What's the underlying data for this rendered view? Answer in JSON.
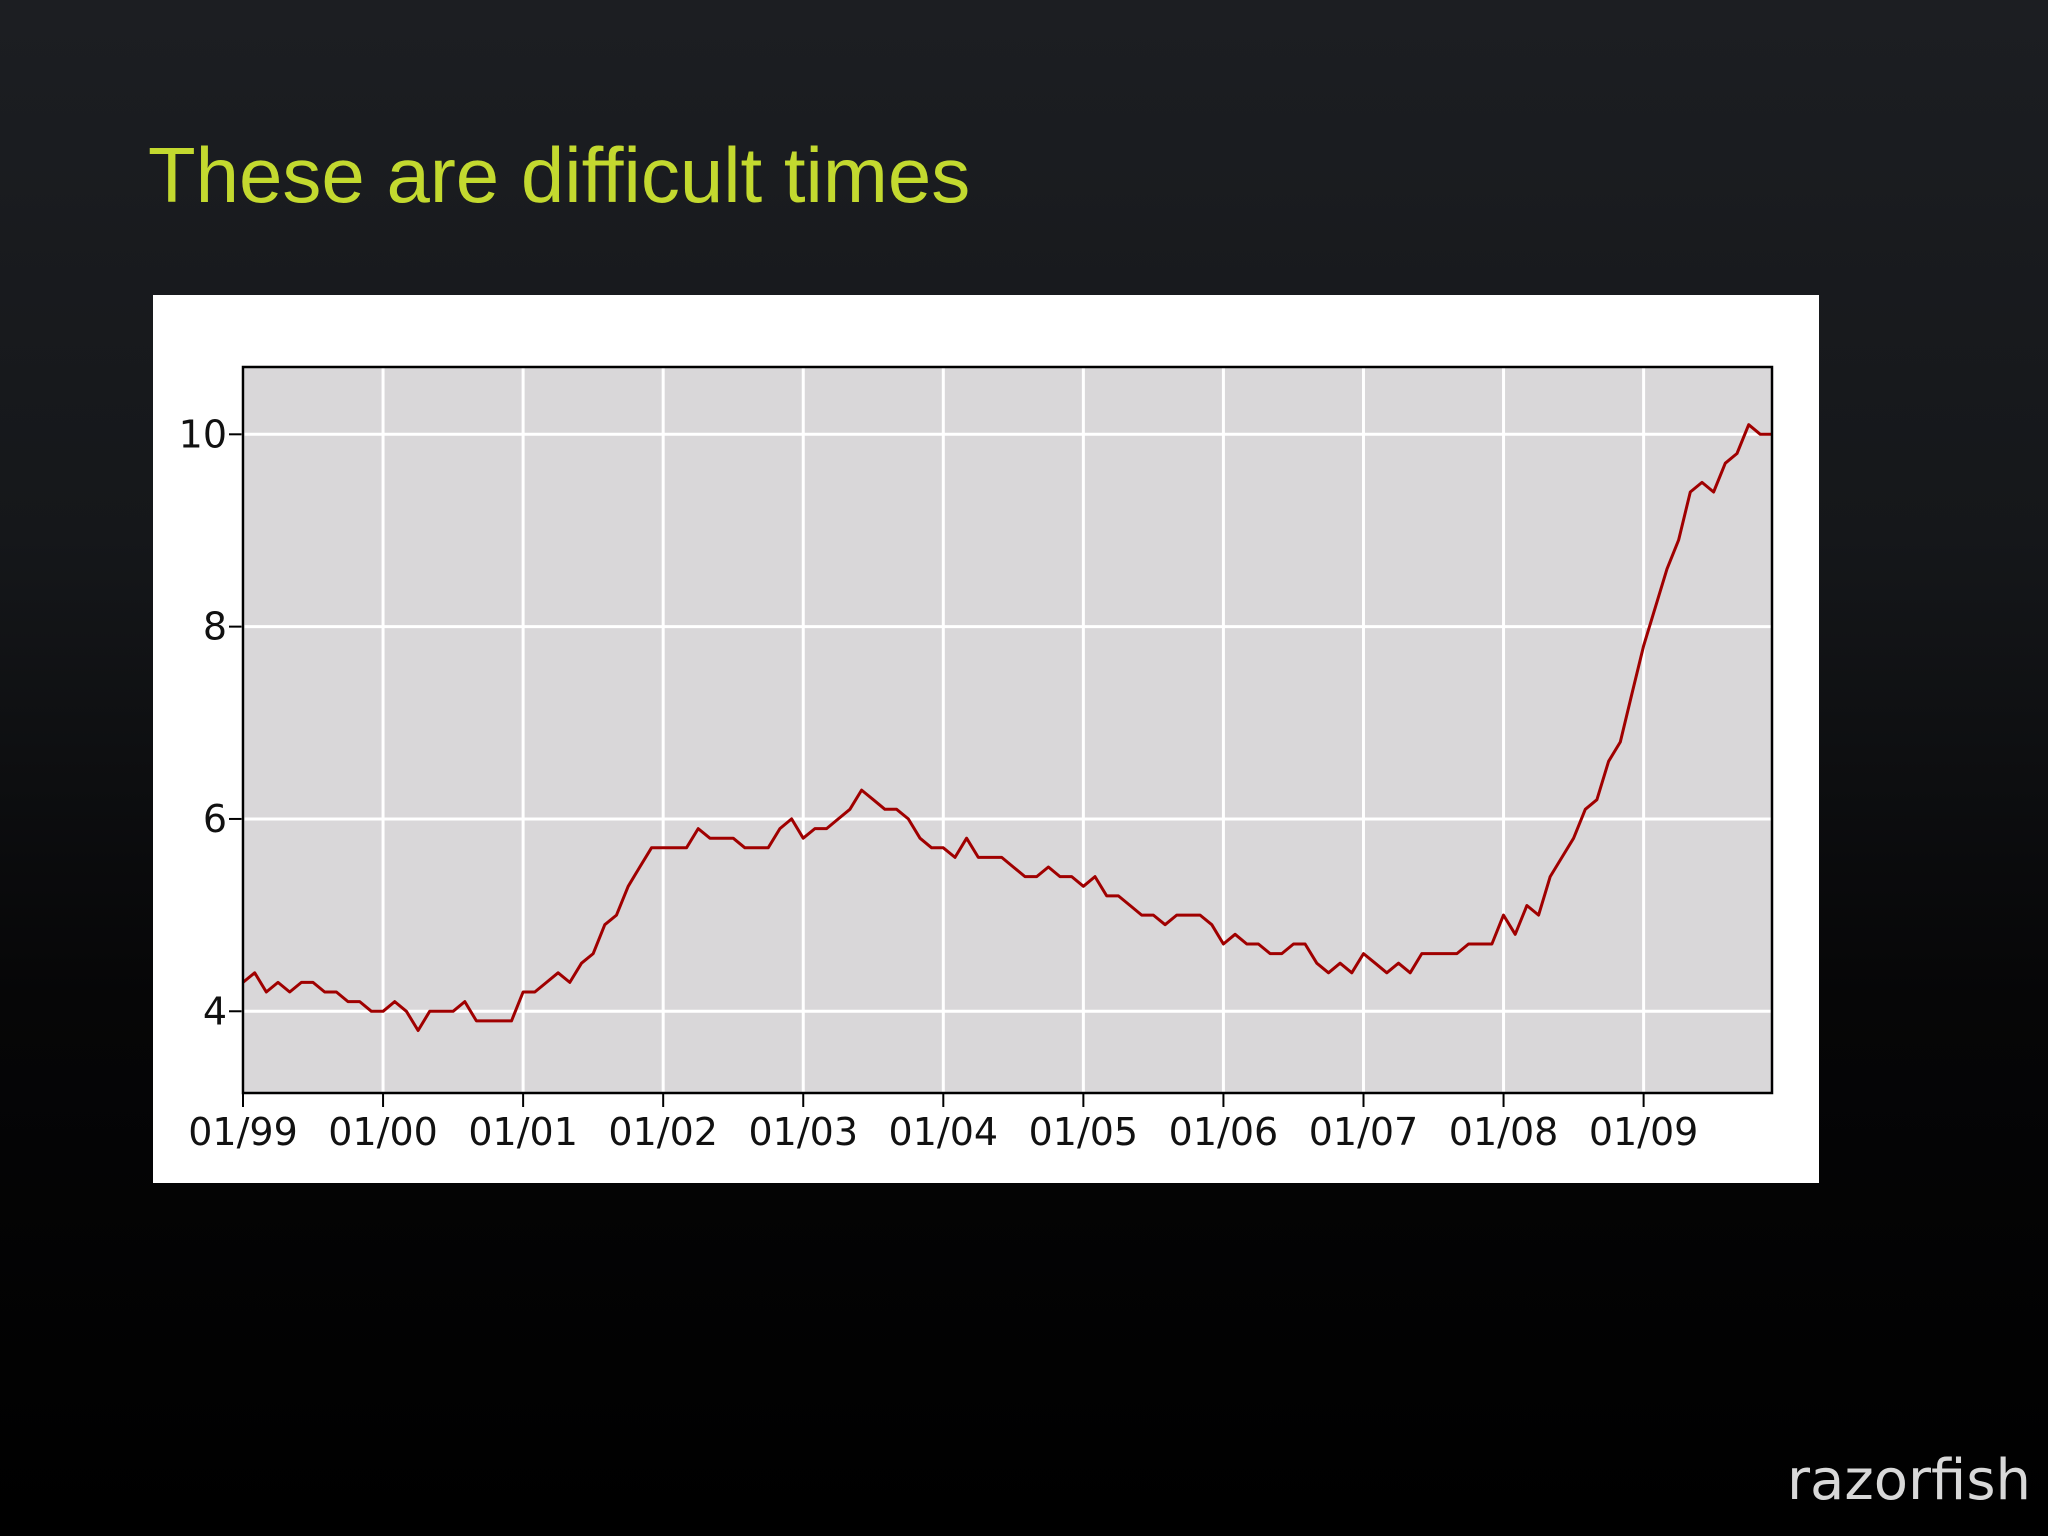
{
  "chart_data": {
    "type": "line",
    "title": "These are difficult times",
    "logo": "razorfish",
    "x": [
      "01/99",
      "02/99",
      "03/99",
      "04/99",
      "05/99",
      "06/99",
      "07/99",
      "08/99",
      "09/99",
      "10/99",
      "11/99",
      "12/99",
      "01/00",
      "02/00",
      "03/00",
      "04/00",
      "05/00",
      "06/00",
      "07/00",
      "08/00",
      "09/00",
      "10/00",
      "11/00",
      "12/00",
      "01/01",
      "02/01",
      "03/01",
      "04/01",
      "05/01",
      "06/01",
      "07/01",
      "08/01",
      "09/01",
      "10/01",
      "11/01",
      "12/01",
      "01/02",
      "02/02",
      "03/02",
      "04/02",
      "05/02",
      "06/02",
      "07/02",
      "08/02",
      "09/02",
      "10/02",
      "11/02",
      "12/02",
      "01/03",
      "02/03",
      "03/03",
      "04/03",
      "05/03",
      "06/03",
      "07/03",
      "08/03",
      "09/03",
      "10/03",
      "11/03",
      "12/03",
      "01/04",
      "02/04",
      "03/04",
      "04/04",
      "05/04",
      "06/04",
      "07/04",
      "08/04",
      "09/04",
      "10/04",
      "11/04",
      "12/04",
      "01/05",
      "02/05",
      "03/05",
      "04/05",
      "05/05",
      "06/05",
      "07/05",
      "08/05",
      "09/05",
      "10/05",
      "11/05",
      "12/05",
      "01/06",
      "02/06",
      "03/06",
      "04/06",
      "05/06",
      "06/06",
      "07/06",
      "08/06",
      "09/06",
      "10/06",
      "11/06",
      "12/06",
      "01/07",
      "02/07",
      "03/07",
      "04/07",
      "05/07",
      "06/07",
      "07/07",
      "08/07",
      "09/07",
      "10/07",
      "11/07",
      "12/07",
      "01/08",
      "02/08",
      "03/08",
      "04/08",
      "05/08",
      "06/08",
      "07/08",
      "08/08",
      "09/08",
      "10/08",
      "11/08",
      "12/08",
      "01/09",
      "02/09",
      "03/09",
      "04/09",
      "05/09",
      "06/09",
      "07/09",
      "08/09",
      "09/09",
      "10/09",
      "11/09",
      "12/09"
    ],
    "series": [
      {
        "color": "#a00000",
        "values": [
          4.3,
          4.4,
          4.2,
          4.3,
          4.2,
          4.3,
          4.3,
          4.2,
          4.2,
          4.1,
          4.1,
          4.0,
          4.0,
          4.1,
          4.0,
          3.8,
          4.0,
          4.0,
          4.0,
          4.1,
          3.9,
          3.9,
          3.9,
          3.9,
          4.2,
          4.2,
          4.3,
          4.4,
          4.3,
          4.5,
          4.6,
          4.9,
          5.0,
          5.3,
          5.5,
          5.7,
          5.7,
          5.7,
          5.7,
          5.9,
          5.8,
          5.8,
          5.8,
          5.7,
          5.7,
          5.7,
          5.9,
          6.0,
          5.8,
          5.9,
          5.9,
          6.0,
          6.1,
          6.3,
          6.2,
          6.1,
          6.1,
          6.0,
          5.8,
          5.7,
          5.7,
          5.6,
          5.8,
          5.6,
          5.6,
          5.6,
          5.5,
          5.4,
          5.4,
          5.5,
          5.4,
          5.4,
          5.3,
          5.4,
          5.2,
          5.2,
          5.1,
          5.0,
          5.0,
          4.9,
          5.0,
          5.0,
          5.0,
          4.9,
          4.7,
          4.8,
          4.7,
          4.7,
          4.6,
          4.6,
          4.7,
          4.7,
          4.5,
          4.4,
          4.5,
          4.4,
          4.6,
          4.5,
          4.4,
          4.5,
          4.4,
          4.6,
          4.6,
          4.6,
          4.6,
          4.7,
          4.7,
          4.7,
          5.0,
          4.8,
          5.1,
          5.0,
          5.4,
          5.6,
          5.8,
          6.1,
          6.2,
          6.6,
          6.8,
          7.3,
          7.8,
          8.2,
          8.6,
          8.9,
          9.4,
          9.5,
          9.4,
          9.7,
          9.8,
          10.1,
          10.0,
          10.0
        ]
      }
    ],
    "xlim": [
      "01/99",
      "12/09"
    ],
    "xticks": [
      "01/99",
      "01/00",
      "01/01",
      "01/02",
      "01/03",
      "01/04",
      "01/05",
      "01/06",
      "01/07",
      "01/08",
      "01/09"
    ],
    "ylim": [
      3.15,
      10.7
    ],
    "yticks": [
      4,
      6,
      8,
      10
    ],
    "grid": true
  }
}
